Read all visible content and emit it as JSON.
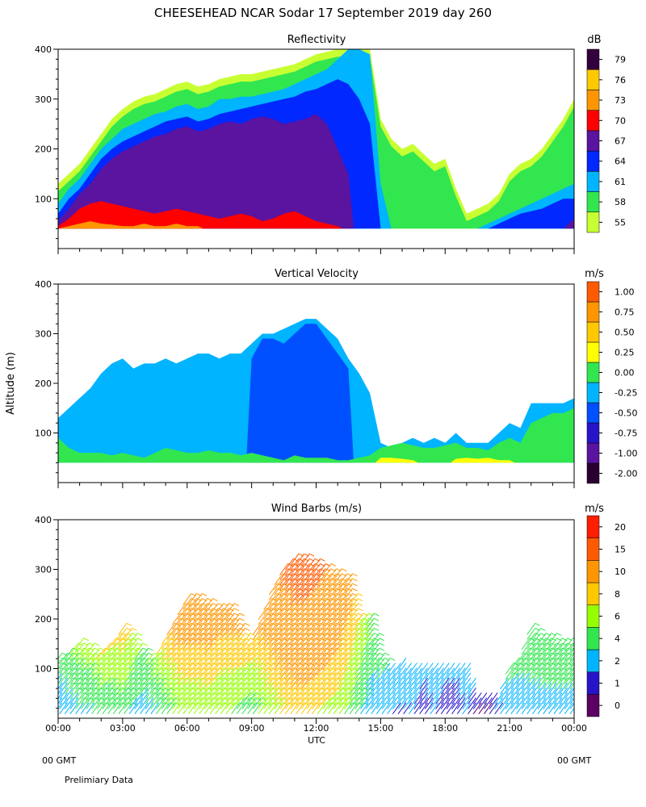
{
  "title": "CHEESEHEAD  NCAR Sodar  17 September 2019  day 260",
  "footer": {
    "left_gmt": "00 GMT",
    "right_gmt": "00 GMT",
    "note": "Prelimiary Data"
  },
  "x_axis": {
    "label": "UTC",
    "range_hours": [
      0,
      24
    ],
    "tick_labels": [
      "00:00",
      "03:00",
      "06:00",
      "09:00",
      "12:00",
      "15:00",
      "18:00",
      "21:00",
      "00:00"
    ]
  },
  "y_axis_label": "Altitude (m)",
  "colors": {
    "reflectivity": [
      "#c8ff32",
      "#32e650",
      "#00b4ff",
      "#0028ff",
      "#5a14a0",
      "#ff0000",
      "#ff9600",
      "#ffc800",
      "#32003c"
    ],
    "velocity": [
      "#2a0030",
      "#5a14a0",
      "#2814c8",
      "#0050ff",
      "#00b4ff",
      "#32e650",
      "#ffff00",
      "#ffc800",
      "#ff9600",
      "#ff5a00",
      "#ff0000"
    ],
    "wind": [
      "#5a0064",
      "#2814c8",
      "#00b4ff",
      "#32e650",
      "#96ff00",
      "#ffc800",
      "#ff9600",
      "#ff5a00",
      "#ff1e00"
    ]
  },
  "chart_data": [
    {
      "type": "heatmap",
      "title": "Reflectivity",
      "units": "dB",
      "xlabel": "",
      "ylabel": "",
      "ylim": [
        0,
        400
      ],
      "y_ticks": [
        100,
        200,
        300,
        400
      ],
      "colorbar": {
        "levels": [
          55,
          58,
          61,
          64,
          67,
          70,
          73,
          76,
          79
        ],
        "labels": [
          "55",
          "58",
          "61",
          "64",
          "67",
          "70",
          "73",
          "76",
          "79"
        ]
      },
      "profiles": {
        "hours": [
          0,
          0.5,
          1,
          1.5,
          2,
          2.5,
          3,
          3.5,
          4,
          4.5,
          5,
          5.5,
          6,
          6.5,
          7,
          7.5,
          8,
          8.5,
          9,
          9.5,
          10,
          10.5,
          11,
          11.5,
          12,
          12.5,
          13,
          13.5,
          14,
          14.5,
          15,
          15.5,
          16,
          16.5,
          17,
          17.5,
          18,
          18.5,
          19,
          19.5,
          20,
          20.5,
          21,
          21.5,
          22,
          22.5,
          23,
          23.5,
          24
        ],
        "top_m": [
          130,
          150,
          170,
          200,
          230,
          260,
          280,
          295,
          305,
          310,
          320,
          330,
          335,
          325,
          330,
          340,
          345,
          350,
          350,
          355,
          360,
          365,
          370,
          380,
          390,
          395,
          400,
          400,
          400,
          400,
          260,
          220,
          200,
          210,
          190,
          170,
          180,
          120,
          70,
          80,
          90,
          110,
          150,
          170,
          180,
          200,
          230,
          260,
          300
        ],
        "c61_m": [
          90,
          120,
          140,
          170,
          200,
          220,
          240,
          250,
          260,
          270,
          275,
          285,
          290,
          280,
          285,
          300,
          300,
          305,
          305,
          310,
          315,
          320,
          330,
          340,
          350,
          360,
          380,
          400,
          400,
          390,
          130,
          40,
          40,
          40,
          40,
          40,
          40,
          40,
          40,
          40,
          50,
          60,
          70,
          80,
          90,
          100,
          110,
          120,
          130
        ],
        "c64_m": [
          70,
          100,
          120,
          150,
          180,
          200,
          215,
          225,
          235,
          245,
          255,
          260,
          265,
          255,
          260,
          270,
          275,
          280,
          285,
          290,
          295,
          300,
          305,
          315,
          320,
          330,
          340,
          330,
          300,
          250,
          40,
          0,
          0,
          0,
          0,
          0,
          0,
          0,
          0,
          0,
          40,
          50,
          60,
          70,
          75,
          80,
          90,
          100,
          100
        ],
        "c67_m": [
          55,
          80,
          110,
          130,
          160,
          180,
          195,
          205,
          215,
          225,
          230,
          240,
          245,
          235,
          240,
          250,
          255,
          250,
          260,
          265,
          260,
          250,
          255,
          260,
          270,
          250,
          200,
          150,
          0,
          0,
          0,
          0,
          0,
          0,
          0,
          0,
          0,
          0,
          0,
          0,
          0,
          0,
          0,
          0,
          0,
          0,
          0,
          40,
          60
        ],
        "c70_m": [
          45,
          60,
          80,
          90,
          95,
          90,
          85,
          80,
          75,
          70,
          75,
          80,
          75,
          70,
          65,
          60,
          65,
          70,
          65,
          55,
          60,
          70,
          75,
          65,
          55,
          50,
          45,
          0,
          0,
          0,
          0,
          0,
          0,
          0,
          0,
          0,
          0,
          0,
          0,
          0,
          0,
          0,
          0,
          0,
          0,
          0,
          0,
          0,
          0
        ],
        "c73_m": [
          40,
          45,
          50,
          55,
          50,
          48,
          45,
          45,
          50,
          45,
          45,
          50,
          45,
          45,
          0,
          0,
          0,
          0,
          0,
          0,
          0,
          0,
          0,
          0,
          0,
          0,
          0,
          0,
          0,
          0,
          0,
          0,
          0,
          0,
          0,
          0,
          0,
          0,
          0,
          0,
          0,
          0,
          0,
          0,
          0,
          0,
          0,
          0,
          0
        ]
      }
    },
    {
      "type": "heatmap",
      "title": "Vertical Velocity",
      "units": "m/s",
      "xlabel": "",
      "ylabel": "Altitude (m)",
      "ylim": [
        0,
        400
      ],
      "y_ticks": [
        100,
        200,
        300,
        400
      ],
      "colorbar": {
        "levels": [
          -2.0,
          -1.0,
          -0.75,
          -0.5,
          -0.25,
          0.0,
          0.25,
          0.5,
          0.75,
          1.0
        ],
        "labels": [
          "-2.00",
          "-1.00",
          "-0.75",
          "-0.50",
          "-0.25",
          "0.00",
          "0.25",
          "0.50",
          "0.75",
          "1.00"
        ]
      },
      "profiles": {
        "hours": [
          0,
          0.5,
          1,
          1.5,
          2,
          2.5,
          3,
          3.5,
          4,
          4.5,
          5,
          5.5,
          6,
          6.5,
          7,
          7.5,
          8,
          8.5,
          9,
          9.5,
          10,
          10.5,
          11,
          11.5,
          12,
          12.5,
          13,
          13.5,
          14,
          14.5,
          15,
          15.5,
          16,
          16.5,
          17,
          17.5,
          18,
          18.5,
          19,
          19.5,
          20,
          20.5,
          21,
          21.5,
          22,
          22.5,
          23,
          23.5,
          24
        ],
        "top_m": [
          130,
          150,
          170,
          190,
          220,
          240,
          250,
          230,
          240,
          240,
          250,
          240,
          250,
          260,
          260,
          250,
          260,
          260,
          280,
          300,
          300,
          310,
          320,
          330,
          330,
          310,
          290,
          250,
          220,
          180,
          80,
          70,
          80,
          90,
          80,
          90,
          80,
          100,
          80,
          80,
          80,
          100,
          120,
          110,
          160,
          160,
          160,
          160,
          170
        ],
        "blue_m": [
          0,
          0,
          0,
          0,
          0,
          0,
          0,
          0,
          0,
          0,
          0,
          0,
          0,
          0,
          0,
          0,
          0,
          0,
          250,
          290,
          290,
          280,
          300,
          320,
          320,
          290,
          260,
          230,
          0,
          0,
          0,
          0,
          0,
          0,
          0,
          0,
          0,
          0,
          0,
          0,
          0,
          0,
          0,
          0,
          0,
          0,
          0,
          0,
          0
        ],
        "green_m": [
          90,
          70,
          60,
          60,
          60,
          55,
          60,
          55,
          50,
          60,
          70,
          65,
          60,
          60,
          65,
          60,
          60,
          55,
          60,
          55,
          50,
          45,
          55,
          50,
          50,
          50,
          45,
          45,
          50,
          55,
          70,
          75,
          80,
          75,
          70,
          70,
          75,
          80,
          70,
          70,
          65,
          80,
          90,
          80,
          120,
          130,
          140,
          140,
          150
        ],
        "yellow_m": [
          0,
          0,
          0,
          0,
          0,
          0,
          0,
          0,
          0,
          0,
          0,
          0,
          0,
          0,
          0,
          0,
          0,
          0,
          0,
          0,
          0,
          0,
          0,
          0,
          0,
          0,
          0,
          0,
          0,
          0,
          50,
          50,
          48,
          45,
          0,
          0,
          0,
          48,
          50,
          48,
          50,
          45,
          45,
          0,
          0,
          0,
          0,
          0,
          0
        ]
      }
    },
    {
      "type": "scatter",
      "title": "Wind Barbs (m/s)",
      "units": "m/s",
      "xlabel": "UTC",
      "ylabel": "",
      "ylim": [
        0,
        400
      ],
      "y_ticks": [
        100,
        200,
        300,
        400
      ],
      "colorbar": {
        "levels": [
          0,
          1,
          2,
          4,
          6,
          8,
          10,
          15,
          20
        ],
        "labels": [
          "0",
          "1",
          "2",
          "4",
          "6",
          "8",
          "10",
          "15",
          "20"
        ]
      },
      "profiles": {
        "hours": [
          0,
          0.5,
          1,
          1.5,
          2,
          2.5,
          3,
          3.5,
          4,
          4.5,
          5,
          5.5,
          6,
          6.5,
          7,
          7.5,
          8,
          8.5,
          9,
          9.5,
          10,
          10.5,
          11,
          11.5,
          12,
          12.5,
          13,
          13.5,
          14,
          14.5,
          15,
          15.5,
          16,
          16.5,
          17,
          17.5,
          18,
          18.5,
          19,
          19.5,
          20,
          20.5,
          21,
          21.5,
          22,
          22.5,
          23,
          23.5,
          24
        ],
        "top_m": [
          120,
          130,
          150,
          140,
          130,
          150,
          180,
          160,
          130,
          120,
          160,
          200,
          240,
          240,
          230,
          220,
          220,
          180,
          150,
          210,
          260,
          300,
          320,
          320,
          310,
          300,
          290,
          280,
          200,
          200,
          120,
          100,
          110,
          100,
          100,
          100,
          100,
          100,
          100,
          40,
          40,
          40,
          100,
          120,
          180,
          160,
          160,
          150,
          150
        ],
        "speed_ms": [
          4,
          5,
          6,
          6,
          7,
          7,
          8,
          6,
          5,
          6,
          8,
          10,
          11,
          11,
          11,
          10,
          10,
          9,
          8,
          10,
          12,
          14,
          15,
          15,
          14,
          13,
          12,
          10,
          7,
          5,
          4,
          3,
          3,
          3,
          2,
          3,
          2,
          2,
          3,
          1,
          1,
          2,
          4,
          4,
          5,
          5,
          5,
          5,
          5
        ]
      }
    }
  ]
}
